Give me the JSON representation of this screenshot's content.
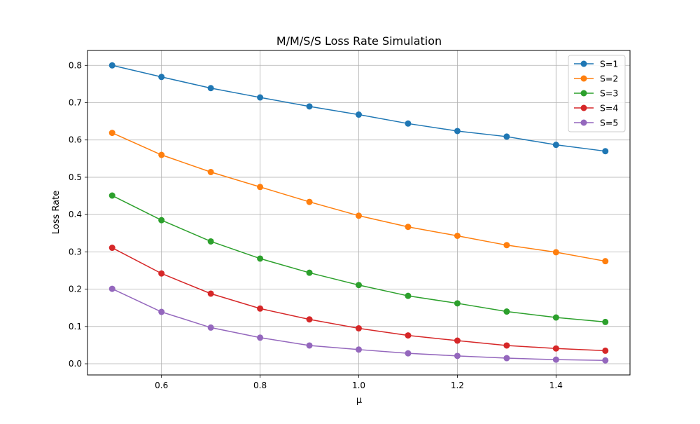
{
  "chart_data": {
    "type": "line",
    "title": "M/M/S/S Loss Rate Simulation",
    "xlabel": "μ",
    "ylabel": "Loss Rate",
    "xlim": [
      0.45,
      1.55
    ],
    "ylim": [
      -0.03,
      0.84
    ],
    "xticks": [
      0.6,
      0.8,
      1.0,
      1.2,
      1.4
    ],
    "yticks": [
      0.0,
      0.1,
      0.2,
      0.3,
      0.4,
      0.5,
      0.6,
      0.7,
      0.8
    ],
    "xtick_labels": [
      "0.6",
      "0.8",
      "1.0",
      "1.2",
      "1.4"
    ],
    "ytick_labels": [
      "0.0",
      "0.1",
      "0.2",
      "0.3",
      "0.4",
      "0.5",
      "0.6",
      "0.7",
      "0.8"
    ],
    "grid": true,
    "legend_position": "top-right",
    "x": [
      0.5,
      0.6,
      0.7,
      0.8,
      0.9,
      1.0,
      1.1,
      1.2,
      1.3,
      1.4,
      1.5
    ],
    "series": [
      {
        "name": "S=1",
        "color": "#1f77b4",
        "values": [
          0.8,
          0.769,
          0.739,
          0.714,
          0.69,
          0.668,
          0.644,
          0.624,
          0.609,
          0.587,
          0.57
        ]
      },
      {
        "name": "S=2",
        "color": "#ff7f0e",
        "values": [
          0.619,
          0.56,
          0.514,
          0.474,
          0.434,
          0.397,
          0.367,
          0.343,
          0.318,
          0.299,
          0.275
        ]
      },
      {
        "name": "S=3",
        "color": "#2ca02c",
        "values": [
          0.451,
          0.385,
          0.328,
          0.282,
          0.244,
          0.211,
          0.182,
          0.162,
          0.14,
          0.124,
          0.112
        ]
      },
      {
        "name": "S=4",
        "color": "#d62728",
        "values": [
          0.311,
          0.242,
          0.188,
          0.148,
          0.119,
          0.095,
          0.076,
          0.062,
          0.049,
          0.041,
          0.035
        ]
      },
      {
        "name": "S=5",
        "color": "#9467bd",
        "values": [
          0.201,
          0.139,
          0.097,
          0.07,
          0.049,
          0.038,
          0.028,
          0.021,
          0.015,
          0.011,
          0.009
        ]
      }
    ]
  }
}
